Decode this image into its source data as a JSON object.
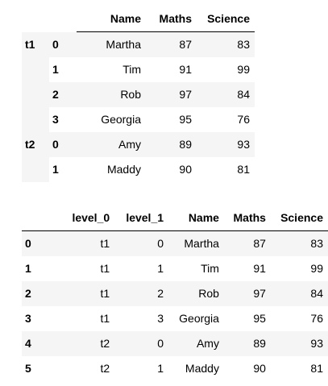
{
  "table1": {
    "columns": [
      "Name",
      "Maths",
      "Science"
    ],
    "groups": [
      {
        "key": "t1",
        "rows": [
          {
            "idx": "0",
            "name": "Martha",
            "maths": "87",
            "science": "83"
          },
          {
            "idx": "1",
            "name": "Tim",
            "maths": "91",
            "science": "99"
          },
          {
            "idx": "2",
            "name": "Rob",
            "maths": "97",
            "science": "84"
          },
          {
            "idx": "3",
            "name": "Georgia",
            "maths": "95",
            "science": "76"
          }
        ]
      },
      {
        "key": "t2",
        "rows": [
          {
            "idx": "0",
            "name": "Amy",
            "maths": "89",
            "science": "93"
          },
          {
            "idx": "1",
            "name": "Maddy",
            "maths": "90",
            "science": "81"
          }
        ]
      }
    ]
  },
  "table2": {
    "columns": [
      "level_0",
      "level_1",
      "Name",
      "Maths",
      "Science"
    ],
    "rows": [
      {
        "idx": "0",
        "level_0": "t1",
        "level_1": "0",
        "name": "Martha",
        "maths": "87",
        "science": "83"
      },
      {
        "idx": "1",
        "level_0": "t1",
        "level_1": "1",
        "name": "Tim",
        "maths": "91",
        "science": "99"
      },
      {
        "idx": "2",
        "level_0": "t1",
        "level_1": "2",
        "name": "Rob",
        "maths": "97",
        "science": "84"
      },
      {
        "idx": "3",
        "level_0": "t1",
        "level_1": "3",
        "name": "Georgia",
        "maths": "95",
        "science": "76"
      },
      {
        "idx": "4",
        "level_0": "t2",
        "level_1": "0",
        "name": "Amy",
        "maths": "89",
        "science": "93"
      },
      {
        "idx": "5",
        "level_0": "t2",
        "level_1": "1",
        "name": "Maddy",
        "maths": "90",
        "science": "81"
      }
    ]
  }
}
